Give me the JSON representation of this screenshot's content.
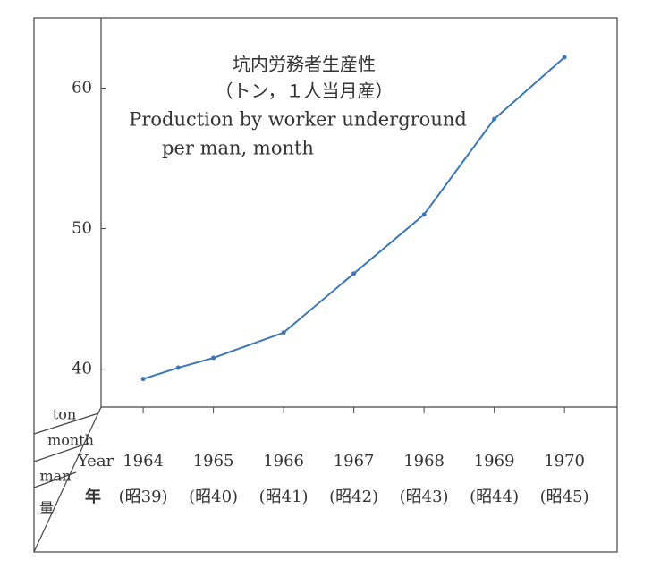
{
  "chart_data": {
    "type": "line",
    "title_lines": [
      "坑内労務者生産性",
      "（トン，１人当月産）",
      "Production by worker underground",
      "per man, month"
    ],
    "corner_labels": {
      "value_unit": [
        "ton",
        "month",
        "man",
        "量"
      ],
      "x_unit": [
        "Year",
        "年"
      ]
    },
    "x": [
      1964,
      1964.5,
      1965,
      1966,
      1967,
      1968,
      1969,
      1970
    ],
    "series": [
      {
        "color": "#3a78b5",
        "values": [
          39.3,
          40.1,
          40.8,
          42.6,
          46.8,
          51.0,
          57.8,
          62.2
        ]
      }
    ],
    "xlim": [
      1963.4,
      1970.75
    ],
    "xticks": [
      1964,
      1965,
      1966,
      1967,
      1968,
      1969,
      1970
    ],
    "xtick_sublabels": [
      "(昭39)",
      "(昭40)",
      "(昭41)",
      "(昭42)",
      "(昭43)",
      "(昭44)",
      "(昭45)"
    ],
    "ylim": [
      37.3,
      65.0
    ],
    "yticks": [
      40,
      50,
      60
    ]
  }
}
